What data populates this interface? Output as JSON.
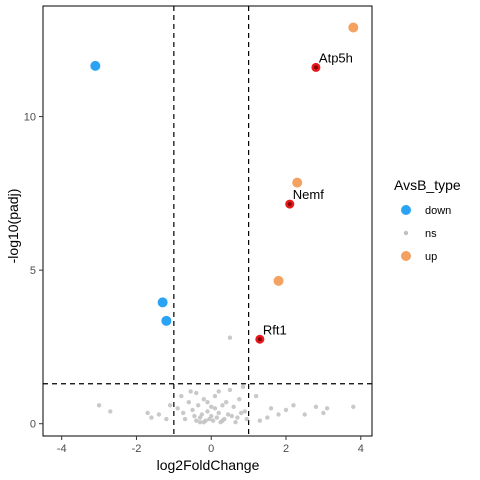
{
  "chart_data": {
    "type": "scatter",
    "xlabel": "log2FoldChange",
    "ylabel": "-log10(padj)",
    "xlim": [
      -4.5,
      4.3
    ],
    "ylim": [
      -0.4,
      13.6
    ],
    "x_ticks": [
      -4,
      -2,
      0,
      2,
      4
    ],
    "y_ticks": [
      0,
      5,
      10
    ],
    "x_tick_labels": [
      "-4",
      "-2",
      "0",
      "2",
      "4"
    ],
    "y_tick_labels": [
      "0",
      "5",
      "10"
    ],
    "vlines": [
      -1,
      1
    ],
    "hline": 1.3,
    "grid": false,
    "legend": {
      "title": "AvsB_type",
      "placement": "right",
      "entries": [
        {
          "label": "down",
          "color": "#2aa3f5"
        },
        {
          "label": "ns",
          "color": "#c0c0c0"
        },
        {
          "label": "up",
          "color": "#f4a261"
        }
      ]
    },
    "series": [
      {
        "name": "down",
        "color": "#2aa3f5",
        "points": [
          [
            -3.1,
            11.65
          ],
          [
            -1.3,
            3.95
          ],
          [
            -1.2,
            3.35
          ]
        ]
      },
      {
        "name": "up",
        "color": "#f4a261",
        "points": [
          [
            3.8,
            12.9
          ],
          [
            2.3,
            7.85
          ],
          [
            1.8,
            4.65
          ]
        ]
      },
      {
        "name": "ns",
        "color": "#c0c0c0",
        "points": [
          [
            0.5,
            2.8
          ],
          [
            -3.0,
            0.6
          ],
          [
            -2.7,
            0.4
          ],
          [
            -1.7,
            0.35
          ],
          [
            -1.4,
            0.3
          ],
          [
            -1.6,
            0.2
          ],
          [
            -0.9,
            0.5
          ],
          [
            -0.8,
            0.9
          ],
          [
            -0.6,
            0.7
          ],
          [
            -0.5,
            0.45
          ],
          [
            -0.4,
            1.0
          ],
          [
            -0.35,
            0.6
          ],
          [
            -0.3,
            0.2
          ],
          [
            -0.25,
            0.3
          ],
          [
            -0.2,
            0.8
          ],
          [
            -0.15,
            0.1
          ],
          [
            -0.1,
            0.4
          ],
          [
            -0.05,
            0.15
          ],
          [
            0.0,
            0.25
          ],
          [
            0.05,
            0.1
          ],
          [
            0.1,
            0.5
          ],
          [
            0.15,
            0.2
          ],
          [
            0.2,
            0.35
          ],
          [
            0.25,
            0.05
          ],
          [
            -0.3,
            0.05
          ],
          [
            0.3,
            0.6
          ],
          [
            0.35,
            0.15
          ],
          [
            0.4,
            0.7
          ],
          [
            0.45,
            0.3
          ],
          [
            0.5,
            1.1
          ],
          [
            0.55,
            0.25
          ],
          [
            0.6,
            0.55
          ],
          [
            0.7,
            0.2
          ],
          [
            0.75,
            0.8
          ],
          [
            0.8,
            0.35
          ],
          [
            0.85,
            1.2
          ],
          [
            0.9,
            0.4
          ],
          [
            0.95,
            0.15
          ],
          [
            -0.7,
            0.15
          ],
          [
            -0.75,
            0.35
          ],
          [
            -0.45,
            0.25
          ],
          [
            0.65,
            0.05
          ],
          [
            -0.2,
            0.05
          ],
          [
            0.0,
            0.55
          ],
          [
            0.1,
            0.9
          ],
          [
            -0.1,
            0.7
          ],
          [
            0.2,
            1.05
          ],
          [
            -0.55,
            1.05
          ],
          [
            1.5,
            0.2
          ],
          [
            1.6,
            0.5
          ],
          [
            1.8,
            0.3
          ],
          [
            2.0,
            0.45
          ],
          [
            2.2,
            0.6
          ],
          [
            2.5,
            0.3
          ],
          [
            2.8,
            0.55
          ],
          [
            3.0,
            0.35
          ],
          [
            3.1,
            0.5
          ],
          [
            3.8,
            0.55
          ],
          [
            1.2,
            0.9
          ],
          [
            1.3,
            0.1
          ],
          [
            -1.2,
            0.15
          ],
          [
            -1.1,
            0.6
          ],
          [
            0.3,
            0.1
          ],
          [
            -0.4,
            0.1
          ]
        ]
      },
      {
        "name": "highlight",
        "color": "#e41a1c",
        "points": [
          [
            2.8,
            11.6
          ],
          [
            2.1,
            7.15
          ],
          [
            1.3,
            2.75
          ]
        ]
      }
    ],
    "annotations": [
      {
        "label": "Atp5h",
        "x": 2.8,
        "y": 11.6
      },
      {
        "label": "Nemf",
        "x": 2.1,
        "y": 7.15
      },
      {
        "label": "Rft1",
        "x": 1.3,
        "y": 2.75
      }
    ]
  }
}
